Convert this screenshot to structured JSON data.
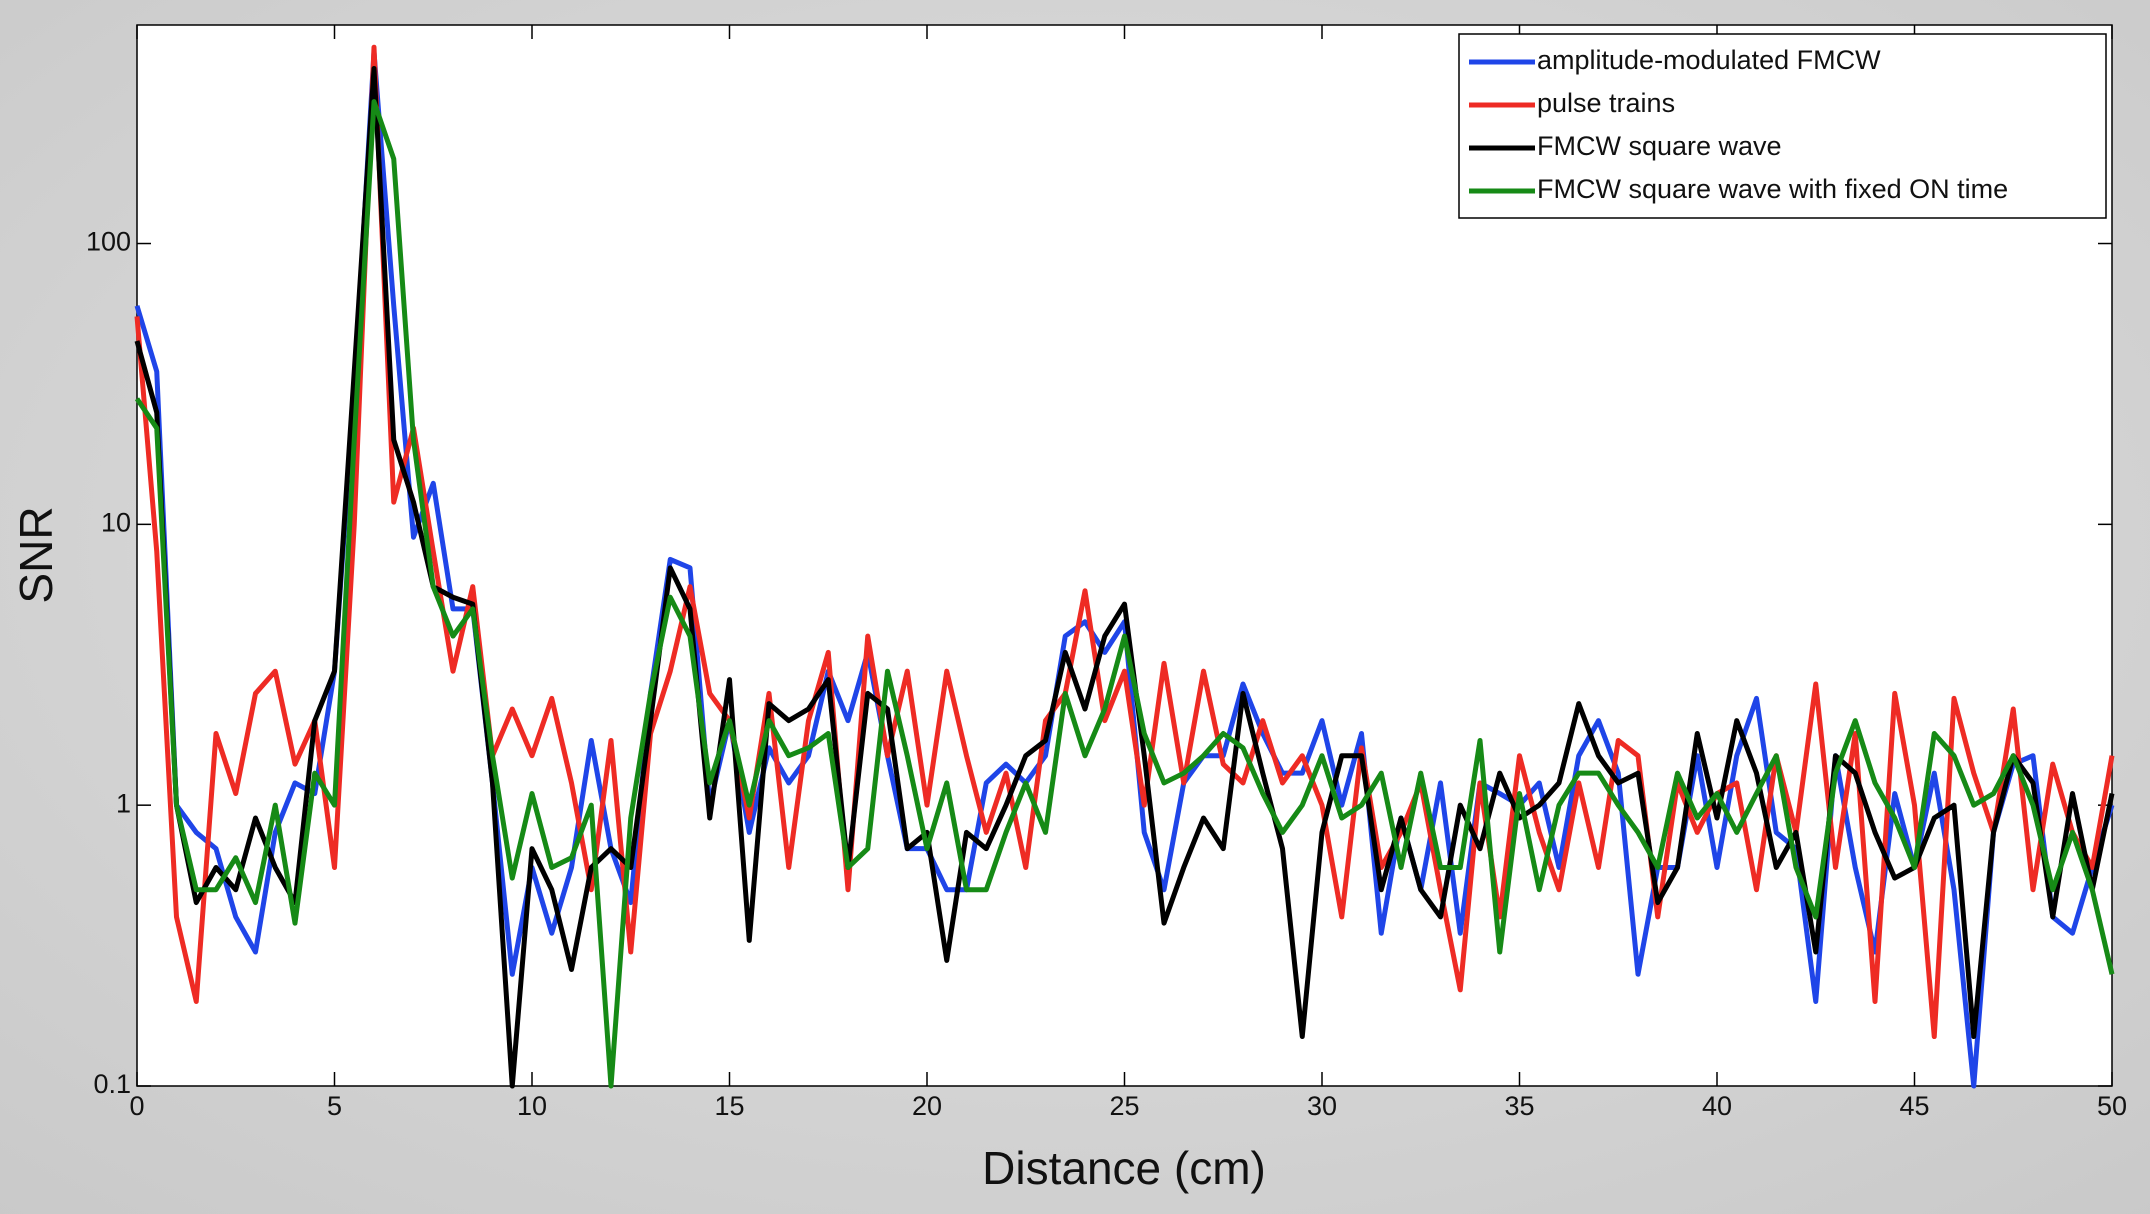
{
  "chart_data": {
    "type": "line",
    "xlabel": "Distance (cm)",
    "ylabel": "SNR",
    "xlim": [
      0,
      50
    ],
    "xticks": [
      0,
      5,
      10,
      15,
      20,
      25,
      30,
      35,
      40,
      45,
      50
    ],
    "ylim": [
      0.1,
      600
    ],
    "yticks": [
      0.1,
      1,
      10,
      100
    ],
    "ylog": true,
    "legend": "upper right",
    "x": [
      0,
      0.5,
      1,
      1.5,
      2,
      2.5,
      3,
      3.5,
      4,
      4.5,
      5,
      5.5,
      6,
      6.5,
      7,
      7.5,
      8,
      8.5,
      9,
      9.5,
      10,
      10.5,
      11,
      11.5,
      12,
      12.5,
      13,
      13.5,
      14,
      14.5,
      15,
      15.5,
      16,
      16.5,
      17,
      17.5,
      18,
      18.5,
      19,
      19.5,
      20,
      20.5,
      21,
      21.5,
      22,
      22.5,
      23,
      23.5,
      24,
      24.5,
      25,
      25.5,
      26,
      26.5,
      27,
      27.5,
      28,
      28.5,
      29,
      29.5,
      30,
      30.5,
      31,
      31.5,
      32,
      32.5,
      33,
      33.5,
      34,
      34.5,
      35,
      35.5,
      36,
      36.5,
      37,
      37.5,
      38,
      38.5,
      39,
      39.5,
      40,
      40.5,
      41,
      41.5,
      42,
      42.5,
      43,
      43.5,
      44,
      44.5,
      45,
      45.5,
      46,
      46.5,
      47,
      47.5,
      48,
      48.5,
      49,
      49.5,
      50
    ],
    "series": [
      {
        "name": "amplitude-modulated FMCW",
        "color": "#1f45e8",
        "values": [
          60,
          35,
          1.0,
          0.8,
          0.7,
          0.4,
          0.3,
          0.8,
          1.2,
          1.1,
          3,
          30,
          480,
          60,
          9,
          14,
          5,
          5,
          1.2,
          0.25,
          0.6,
          0.35,
          0.6,
          1.7,
          0.7,
          0.45,
          2.5,
          7.5,
          7,
          1,
          2,
          0.8,
          1.6,
          1.2,
          1.5,
          3,
          2,
          3.5,
          1.5,
          0.7,
          0.7,
          0.5,
          0.5,
          1.2,
          1.4,
          1.2,
          1.5,
          4,
          4.5,
          3.5,
          4.5,
          0.8,
          0.5,
          1.2,
          1.5,
          1.5,
          2.7,
          1.8,
          1.3,
          1.3,
          2,
          1,
          1.8,
          0.35,
          0.9,
          0.5,
          1.2,
          0.35,
          1.2,
          1.1,
          1,
          1.2,
          0.6,
          1.5,
          2,
          1.3,
          0.25,
          0.6,
          0.6,
          1.5,
          0.6,
          1.5,
          2.4,
          0.8,
          0.7,
          0.2,
          1.5,
          0.6,
          0.3,
          1.1,
          0.6,
          1.3,
          0.5,
          0.1,
          0.8,
          1.4,
          1.5,
          0.4,
          0.35,
          0.6,
          1
        ]
      },
      {
        "name": "pulse trains",
        "color": "#ee2b24",
        "values": [
          55,
          8,
          0.4,
          0.2,
          1.8,
          1.1,
          2.5,
          3,
          1.4,
          2,
          0.6,
          10,
          500,
          12,
          22,
          8,
          3,
          6,
          1.5,
          2.2,
          1.5,
          2.4,
          1.2,
          0.5,
          1.7,
          0.3,
          1.8,
          3,
          6,
          2.5,
          2,
          0.9,
          2.5,
          0.6,
          2,
          3.5,
          0.5,
          4,
          1.5,
          3,
          1,
          3,
          1.5,
          0.8,
          1.3,
          0.6,
          2,
          2.5,
          5.8,
          2,
          3,
          1,
          3.2,
          1.2,
          3,
          1.4,
          1.2,
          2,
          1.2,
          1.5,
          1,
          0.4,
          1.6,
          0.6,
          0.8,
          1.2,
          0.5,
          0.22,
          1.2,
          0.4,
          1.5,
          0.8,
          0.5,
          1.2,
          0.6,
          1.7,
          1.5,
          0.4,
          1.2,
          0.8,
          1.1,
          1.2,
          0.5,
          1.5,
          0.8,
          2.7,
          0.6,
          1.8,
          0.2,
          2.5,
          1,
          0.15,
          2.4,
          1.3,
          0.8,
          2.2,
          0.5,
          1.4,
          0.8,
          0.6,
          1.5
        ]
      },
      {
        "name": "FMCW square wave",
        "color": "#000000",
        "values": [
          45,
          25,
          1.0,
          0.45,
          0.6,
          0.5,
          0.9,
          0.6,
          0.45,
          2,
          3,
          35,
          420,
          20,
          12,
          6,
          5.5,
          5.2,
          1.2,
          0.1,
          0.7,
          0.5,
          0.26,
          0.6,
          0.7,
          0.6,
          2,
          7,
          5,
          0.9,
          2.8,
          0.33,
          2.3,
          2,
          2.2,
          2.8,
          0.6,
          2.5,
          2.2,
          0.7,
          0.8,
          0.28,
          0.8,
          0.7,
          1,
          1.5,
          1.7,
          3.5,
          2.2,
          4,
          5.2,
          1.5,
          0.38,
          0.6,
          0.9,
          0.7,
          2.5,
          1.3,
          0.7,
          0.15,
          0.8,
          1.5,
          1.5,
          0.5,
          0.9,
          0.5,
          0.4,
          1.0,
          0.7,
          1.3,
          0.9,
          1.0,
          1.2,
          2.3,
          1.5,
          1.2,
          1.3,
          0.45,
          0.6,
          1.8,
          0.9,
          2,
          1.3,
          0.6,
          0.8,
          0.3,
          1.5,
          1.3,
          0.8,
          0.55,
          0.6,
          0.9,
          1,
          0.15,
          0.8,
          1.5,
          1.2,
          0.4,
          1.1,
          0.5,
          1.1
        ]
      },
      {
        "name": "FMCW square wave with fixed ON time",
        "color": "#168a16",
        "values": [
          28,
          22,
          1.0,
          0.5,
          0.5,
          0.65,
          0.45,
          1.0,
          0.38,
          1.3,
          1.0,
          20,
          320,
          200,
          20,
          6,
          4,
          5,
          1.5,
          0.55,
          1.1,
          0.6,
          0.65,
          1,
          0.1,
          0.9,
          2.5,
          5.5,
          4,
          1.2,
          2,
          1,
          2,
          1.5,
          1.6,
          1.8,
          0.6,
          0.7,
          3,
          1.5,
          0.7,
          1.2,
          0.5,
          0.5,
          0.8,
          1.2,
          0.8,
          2.5,
          1.5,
          2.2,
          4,
          1.8,
          1.2,
          1.3,
          1.5,
          1.8,
          1.6,
          1.1,
          0.8,
          1.0,
          1.5,
          0.9,
          1.0,
          1.3,
          0.6,
          1.3,
          0.6,
          0.6,
          1.7,
          0.3,
          1.1,
          0.5,
          1.0,
          1.3,
          1.3,
          1.0,
          0.8,
          0.6,
          1.3,
          0.9,
          1.1,
          0.8,
          1.1,
          1.5,
          0.6,
          0.4,
          1.3,
          2,
          1.2,
          0.9,
          0.6,
          1.8,
          1.5,
          1.0,
          1.1,
          1.5,
          1.0,
          0.5,
          0.8,
          0.5,
          0.25
        ]
      }
    ]
  }
}
